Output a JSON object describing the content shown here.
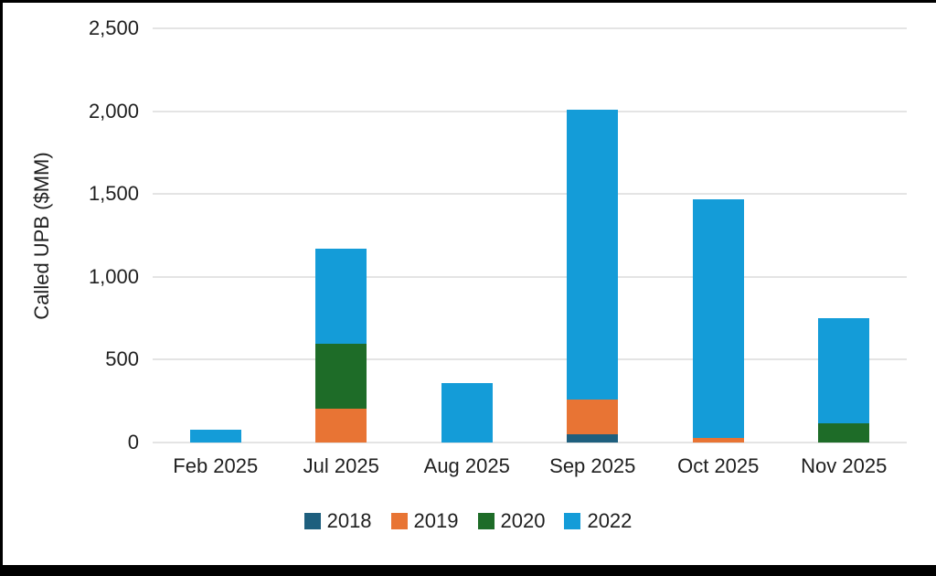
{
  "frame": {
    "border_color": "#000000",
    "background_color": "#ffffff"
  },
  "colors": {
    "text": "#1f1f1f",
    "gridline": "#e4e4e4"
  },
  "y_axis": {
    "title": "Called UPB ($MM)",
    "tick_labels": [
      "0",
      "500",
      "1,000",
      "1,500",
      "2,000",
      "2,500"
    ],
    "tick_values": [
      0,
      500,
      1000,
      1500,
      2000,
      2500
    ]
  },
  "chart_data": {
    "type": "bar",
    "stacked": true,
    "title": "",
    "xlabel": "",
    "ylabel": "Called UPB ($MM)",
    "ylim": [
      0,
      2500
    ],
    "grid": true,
    "legend_position": "bottom",
    "categories": [
      "Feb 2025",
      "Jul 2025",
      "Aug 2025",
      "Sep 2025",
      "Oct 2025",
      "Nov 2025"
    ],
    "series": [
      {
        "name": "2018",
        "color": "#1E5F7E",
        "values": [
          0,
          0,
          0,
          50,
          0,
          0
        ]
      },
      {
        "name": "2019",
        "color": "#E87434",
        "values": [
          0,
          205,
          0,
          210,
          25,
          0
        ]
      },
      {
        "name": "2020",
        "color": "#1E6C28",
        "values": [
          0,
          390,
          0,
          0,
          0,
          115
        ]
      },
      {
        "name": "2022",
        "color": "#149CD8",
        "values": [
          75,
          575,
          360,
          1750,
          1445,
          635
        ]
      }
    ],
    "category_totals": [
      75,
      1170,
      360,
      2010,
      1470,
      750
    ]
  }
}
